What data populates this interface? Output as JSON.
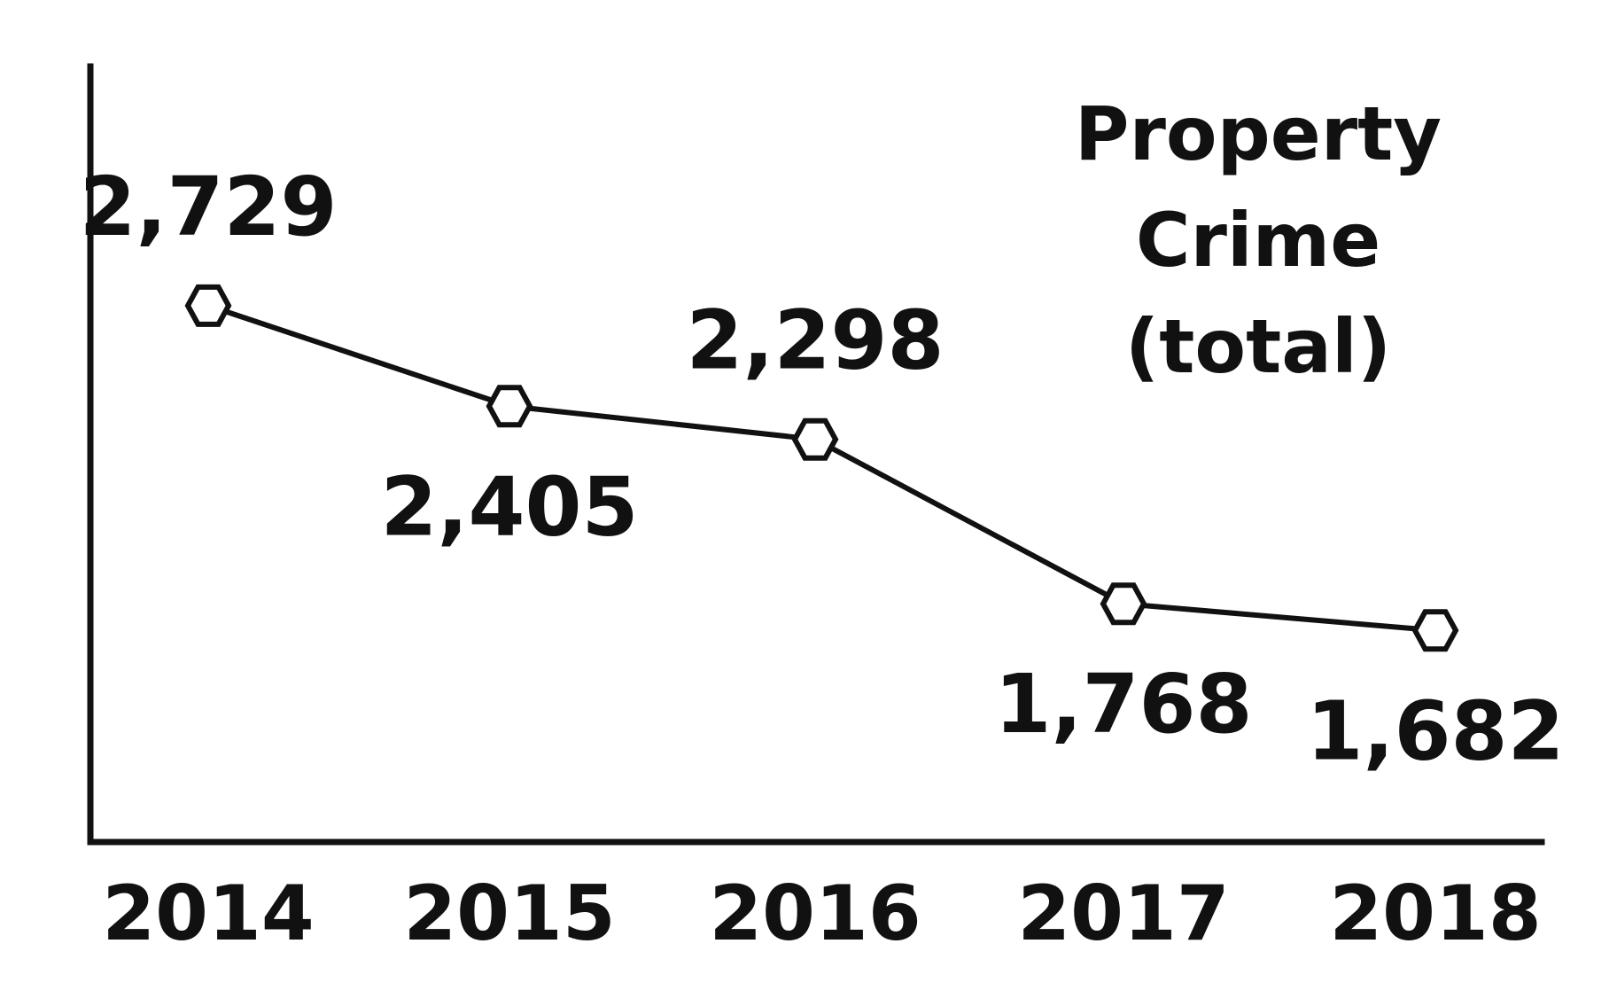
{
  "chart_data": {
    "type": "line",
    "title_lines": [
      "Property",
      "Crime",
      "(total)"
    ],
    "categories": [
      "2014",
      "2015",
      "2016",
      "2017",
      "2018"
    ],
    "series": [
      {
        "values": [
          2729,
          2405,
          2298,
          1768,
          1682
        ],
        "data_labels": [
          "2,729",
          "2,405",
          "2,298",
          "1,768",
          "1,682"
        ]
      }
    ],
    "xlabel": "",
    "ylabel": "",
    "ylim": [
      1000,
      3500
    ],
    "grid": false,
    "marker": "hexagon",
    "colors": {
      "line": "#111111",
      "marker_fill": "#ffffff",
      "text": "#111111"
    }
  }
}
